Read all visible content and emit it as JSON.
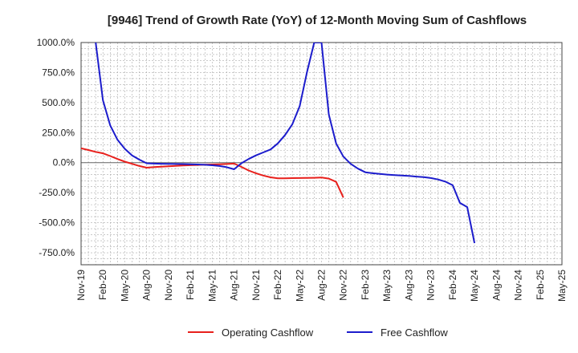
{
  "chart_data": {
    "type": "line",
    "title": "[9946]  Trend of Growth Rate (YoY) of 12-Month Moving Sum of Cashflows",
    "xlabel": "",
    "ylabel": "",
    "ylim": [
      -850,
      1000
    ],
    "x_range": [
      "2019-11",
      "2025-05"
    ],
    "y_ticks": [
      1000,
      750,
      500,
      250,
      0,
      -250,
      -500,
      -750
    ],
    "y_tick_labels": [
      "1000.0%",
      "750.0%",
      "500.0%",
      "250.0%",
      "0.0%",
      "-250.0%",
      "-500.0%",
      "-750.0%"
    ],
    "x_ticks": [
      "2019-11",
      "2020-02",
      "2020-05",
      "2020-08",
      "2020-11",
      "2021-02",
      "2021-05",
      "2021-08",
      "2021-11",
      "2022-02",
      "2022-05",
      "2022-08",
      "2022-11",
      "2023-02",
      "2023-05",
      "2023-08",
      "2023-11",
      "2024-02",
      "2024-05",
      "2024-08",
      "2024-11",
      "2025-02",
      "2025-05"
    ],
    "x_tick_labels": [
      "Nov-19",
      "Feb-20",
      "May-20",
      "Aug-20",
      "Nov-20",
      "Feb-21",
      "May-21",
      "Aug-21",
      "Nov-21",
      "Feb-22",
      "May-22",
      "Aug-22",
      "Nov-22",
      "Feb-23",
      "May-23",
      "Aug-23",
      "Nov-23",
      "Feb-24",
      "May-24",
      "Aug-24",
      "Nov-24",
      "Feb-25",
      "May-25"
    ],
    "grid": true,
    "legend_position": "bottom",
    "series": [
      {
        "name": "Operating Cashflow",
        "color": "#e8201c",
        "points": [
          [
            "2019-11",
            120
          ],
          [
            "2019-12",
            105
          ],
          [
            "2020-01",
            90
          ],
          [
            "2020-02",
            78
          ],
          [
            "2020-03",
            55
          ],
          [
            "2020-04",
            30
          ],
          [
            "2020-05",
            8
          ],
          [
            "2020-06",
            -10
          ],
          [
            "2020-07",
            -28
          ],
          [
            "2020-08",
            -42
          ],
          [
            "2020-09",
            -37
          ],
          [
            "2020-10",
            -33
          ],
          [
            "2020-11",
            -30
          ],
          [
            "2020-12",
            -27
          ],
          [
            "2021-01",
            -24
          ],
          [
            "2021-02",
            -21
          ],
          [
            "2021-03",
            -19
          ],
          [
            "2021-04",
            -17
          ],
          [
            "2021-05",
            -15
          ],
          [
            "2021-06",
            -13
          ],
          [
            "2021-07",
            -11
          ],
          [
            "2021-08",
            -8
          ],
          [
            "2021-09",
            -35
          ],
          [
            "2021-10",
            -65
          ],
          [
            "2021-11",
            -88
          ],
          [
            "2021-12",
            -107
          ],
          [
            "2022-01",
            -122
          ],
          [
            "2022-02",
            -130
          ],
          [
            "2022-03",
            -130
          ],
          [
            "2022-04",
            -129
          ],
          [
            "2022-05",
            -128
          ],
          [
            "2022-06",
            -127
          ],
          [
            "2022-07",
            -126
          ],
          [
            "2022-08",
            -124
          ],
          [
            "2022-09",
            -133
          ],
          [
            "2022-10",
            -160
          ],
          [
            "2022-11",
            -290
          ]
        ]
      },
      {
        "name": "Free Cashflow",
        "color": "#1c1ccc",
        "points": [
          [
            "2020-01",
            1000
          ],
          [
            "2020-02",
            520
          ],
          [
            "2020-03",
            310
          ],
          [
            "2020-04",
            190
          ],
          [
            "2020-05",
            115
          ],
          [
            "2020-06",
            60
          ],
          [
            "2020-07",
            25
          ],
          [
            "2020-08",
            -5
          ],
          [
            "2020-09",
            -8
          ],
          [
            "2020-10",
            -9
          ],
          [
            "2020-11",
            -10
          ],
          [
            "2020-12",
            -11
          ],
          [
            "2021-01",
            -12
          ],
          [
            "2021-02",
            -13
          ],
          [
            "2021-03",
            -15
          ],
          [
            "2021-04",
            -18
          ],
          [
            "2021-05",
            -22
          ],
          [
            "2021-06",
            -28
          ],
          [
            "2021-07",
            -38
          ],
          [
            "2021-08",
            -55
          ],
          [
            "2021-09",
            -5
          ],
          [
            "2021-10",
            30
          ],
          [
            "2021-11",
            60
          ],
          [
            "2021-12",
            85
          ],
          [
            "2022-01",
            110
          ],
          [
            "2022-02",
            160
          ],
          [
            "2022-03",
            230
          ],
          [
            "2022-04",
            320
          ],
          [
            "2022-05",
            470
          ],
          [
            "2022-06",
            750
          ],
          [
            "2022-07",
            1000
          ],
          [
            "2022-08",
            1000
          ],
          [
            "2022-09",
            400
          ],
          [
            "2022-10",
            160
          ],
          [
            "2022-11",
            50
          ],
          [
            "2022-12",
            -10
          ],
          [
            "2023-01",
            -50
          ],
          [
            "2023-02",
            -80
          ],
          [
            "2023-03",
            -88
          ],
          [
            "2023-04",
            -94
          ],
          [
            "2023-05",
            -99
          ],
          [
            "2023-06",
            -103
          ],
          [
            "2023-07",
            -107
          ],
          [
            "2023-08",
            -111
          ],
          [
            "2023-09",
            -116
          ],
          [
            "2023-10",
            -121
          ],
          [
            "2023-11",
            -128
          ],
          [
            "2023-12",
            -140
          ],
          [
            "2024-01",
            -158
          ],
          [
            "2024-02",
            -188
          ],
          [
            "2024-03",
            -335
          ],
          [
            "2024-04",
            -370
          ],
          [
            "2024-05",
            -670
          ]
        ]
      }
    ]
  }
}
